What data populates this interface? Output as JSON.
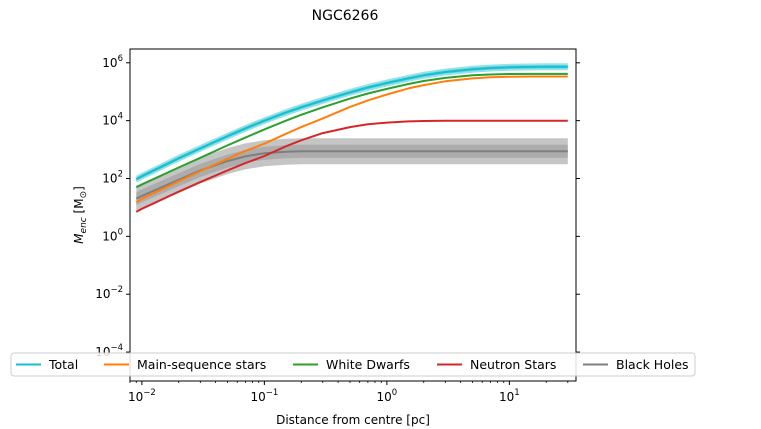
{
  "chart_data": {
    "type": "line",
    "title": "NGC6266",
    "xlabel": "Distance from centre [pc]",
    "ylabel": "M_enc [M⊙]",
    "x_scale": "log",
    "y_scale": "log",
    "xlim": [
      0.008,
      35
    ],
    "ylim": [
      1e-05,
      3000000
    ],
    "x_ticks": [
      {
        "value": 0.01,
        "label": "10",
        "exp": "−2"
      },
      {
        "value": 0.1,
        "label": "10",
        "exp": "−1"
      },
      {
        "value": 1,
        "label": "10",
        "exp": "0"
      },
      {
        "value": 10,
        "label": "10",
        "exp": "1"
      }
    ],
    "y_ticks": [
      {
        "value": 0.0001,
        "label": "10",
        "exp": "−4"
      },
      {
        "value": 0.01,
        "label": "10",
        "exp": "−2"
      },
      {
        "value": 1,
        "label": "10",
        "exp": "0"
      },
      {
        "value": 100,
        "label": "10",
        "exp": "2"
      },
      {
        "value": 10000,
        "label": "10",
        "exp": "4"
      },
      {
        "value": 1000000,
        "label": "10",
        "exp": "6"
      }
    ],
    "grid": false,
    "legend_position": "bottom",
    "x": [
      0.009,
      0.01,
      0.02,
      0.03,
      0.05,
      0.07,
      0.1,
      0.15,
      0.2,
      0.3,
      0.5,
      0.7,
      1,
      1.5,
      2,
      3,
      5,
      7,
      10,
      15,
      20,
      30
    ],
    "series": [
      {
        "name": "Total",
        "color": "#17becf",
        "values": [
          95,
          120,
          500,
          1100,
          2900,
          5400,
          10000,
          19000,
          29000,
          50000,
          95000,
          140000,
          200000,
          290000,
          370000,
          480000,
          600000,
          660000,
          700000,
          720000,
          730000,
          730000
        ],
        "band_width_dex": 0.12
      },
      {
        "name": "Main-sequence stars",
        "color": "#ff7f0e",
        "values": [
          15,
          20,
          80,
          180,
          480,
          900,
          1600,
          3500,
          6000,
          12000,
          30000,
          50000,
          80000,
          130000,
          170000,
          230000,
          290000,
          315000,
          330000,
          335000,
          335000,
          335000
        ]
      },
      {
        "name": "White Dwarfs",
        "color": "#2ca02c",
        "values": [
          50,
          62,
          240,
          520,
          1400,
          2600,
          5000,
          10000,
          16000,
          29000,
          58000,
          87000,
          125000,
          185000,
          235000,
          300000,
          370000,
          395000,
          410000,
          415000,
          415000,
          415000
        ]
      },
      {
        "name": "Neutron Stars",
        "color": "#d62728",
        "values": [
          7,
          9,
          35,
          75,
          190,
          340,
          600,
          1300,
          2100,
          3700,
          6000,
          7500,
          8600,
          9400,
          9700,
          9900,
          10000,
          10000,
          10000,
          10000,
          10000,
          10000
        ]
      },
      {
        "name": "Black Holes",
        "color": "#7f7f7f",
        "values": [
          20,
          25,
          90,
          190,
          400,
          580,
          750,
          840,
          870,
          880,
          880,
          880,
          880,
          880,
          880,
          880,
          880,
          880,
          880,
          880,
          880,
          880
        ],
        "band_width_dex": 0.45
      }
    ]
  }
}
